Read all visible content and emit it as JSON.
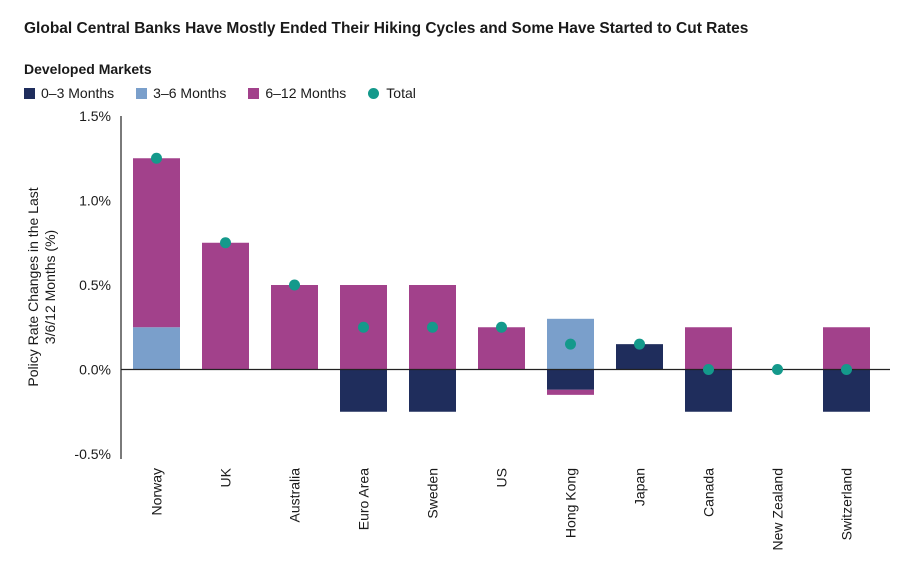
{
  "title": "Global Central Banks Have Mostly Ended Their Hiking Cycles and Some Have Started to Cut Rates",
  "subtitle": "Developed Markets",
  "colors": {
    "m0_3": "#1f2d5c",
    "m3_6": "#7a9fcb",
    "m6_12": "#a2418b",
    "total": "#14998b",
    "axis": "#222222",
    "text": "#1a1a1a"
  },
  "legend": [
    {
      "label": "0–3 Months",
      "key": "m0_3",
      "marker": "square"
    },
    {
      "label": "3–6 Months",
      "key": "m3_6",
      "marker": "square"
    },
    {
      "label": "6–12 Months",
      "key": "m6_12",
      "marker": "square"
    },
    {
      "label": "Total",
      "key": "total",
      "marker": "circle"
    }
  ],
  "chart_data": {
    "type": "bar",
    "stacked": true,
    "title": "Global Central Banks Have Mostly Ended Their Hiking Cycles and Some Have Started to Cut Rates",
    "subtitle": "Developed Markets",
    "ylabel": "Policy Rate Changes in the Last 3/6/12 Months (%)",
    "ylim": [
      -0.5,
      1.5
    ],
    "yticks": [
      -0.5,
      0.0,
      0.5,
      1.0,
      1.5
    ],
    "ytick_labels": [
      "-0.5%",
      "0.0%",
      "0.5%",
      "1.0%",
      "1.5%"
    ],
    "legend_position": "top-left",
    "categories": [
      "Norway",
      "UK",
      "Australia",
      "Euro Area",
      "Sweden",
      "US",
      "Hong Kong",
      "Japan",
      "Canada",
      "New Zealand",
      "Switzerland"
    ],
    "series": [
      {
        "name": "0–3 Months",
        "key": "m0_3",
        "values": [
          0,
          0,
          0,
          -0.25,
          -0.25,
          0,
          -0.12,
          0.15,
          -0.25,
          0,
          -0.25
        ]
      },
      {
        "name": "3–6 Months",
        "key": "m3_6",
        "values": [
          0.25,
          0,
          0,
          0,
          0,
          0,
          0.3,
          0,
          0,
          0,
          0
        ]
      },
      {
        "name": "6–12 Months",
        "key": "m6_12",
        "values": [
          1.0,
          0.75,
          0.5,
          0.5,
          0.5,
          0.25,
          -0.03,
          0,
          0.25,
          0,
          0.25
        ]
      }
    ],
    "total": {
      "name": "Total",
      "key": "total",
      "values": [
        1.25,
        0.75,
        0.5,
        0.25,
        0.25,
        0.25,
        0.15,
        0.15,
        0.0,
        0.0,
        0.0
      ]
    }
  }
}
